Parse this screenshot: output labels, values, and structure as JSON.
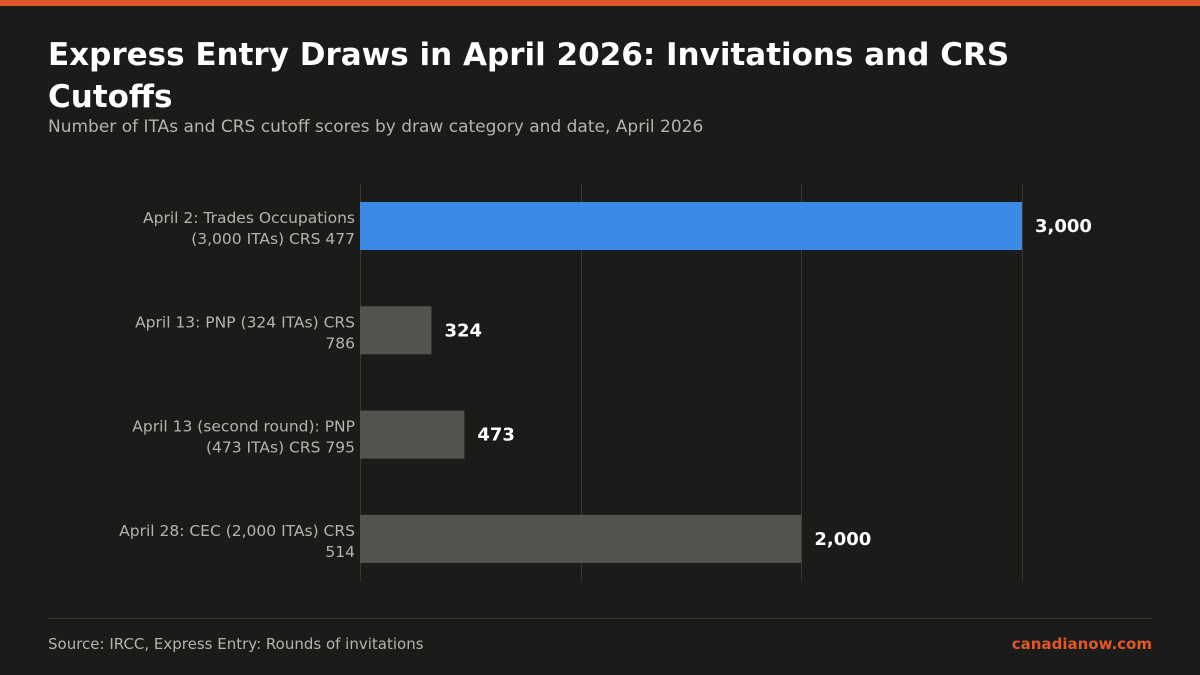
{
  "header": {
    "title": "Express Entry Draws in April 2026: Invitations and CRS Cutoffs",
    "subtitle": "Number of ITAs and CRS cutoff scores by draw category and date, April 2026"
  },
  "footer": {
    "source": "Source: IRCC, Express Entry: Rounds of invitations",
    "brand": "canadianow.com"
  },
  "colors": {
    "accent": "#e0582a",
    "highlight_bar": "#3a8ae6",
    "bar": "#54534d",
    "grid": "#3a3936",
    "label": "#b5b3ab",
    "value": "#ffffff"
  },
  "chart_data": {
    "type": "bar",
    "orientation": "horizontal",
    "categories": [
      [
        "April 2: Trades Occupations",
        "(3,000 ITAs) CRS 477"
      ],
      [
        "April 13: PNP (324 ITAs) CRS",
        "786"
      ],
      [
        "April 13 (second round): PNP",
        "(473 ITAs) CRS 795"
      ],
      [
        "April 28: CEC (2,000 ITAs) CRS",
        "514"
      ]
    ],
    "values": [
      3000,
      324,
      473,
      2000
    ],
    "value_labels": [
      "3,000",
      "324",
      "473",
      "2,000"
    ],
    "highlight_index": 0,
    "xlim": [
      0,
      3000
    ],
    "gridline_values": [
      0,
      1000,
      2000,
      3000
    ],
    "grid": true,
    "title": "Express Entry Draws in April 2026: Invitations and CRS Cutoffs",
    "xlabel": "",
    "ylabel": ""
  }
}
